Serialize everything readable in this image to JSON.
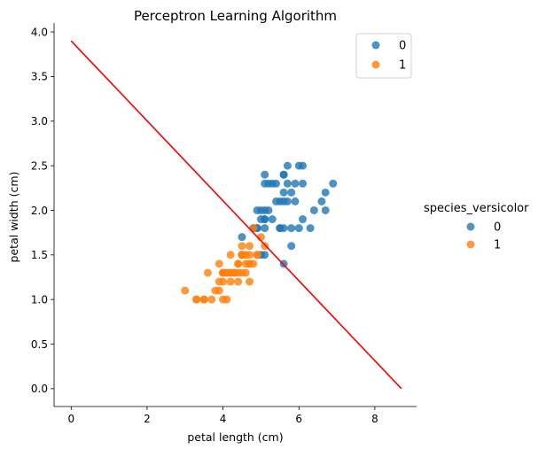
{
  "chart_data": {
    "type": "scatter",
    "title": "Perceptron Learning Algorithm",
    "xlabel": "petal length (cm)",
    "ylabel": "petal width (cm)",
    "xlim": [
      -0.45,
      9.1
    ],
    "ylim": [
      -0.2,
      4.1
    ],
    "xticks": [
      "0",
      "2",
      "4",
      "6",
      "8"
    ],
    "xtick_values": [
      0,
      2,
      4,
      6,
      8
    ],
    "yticks": [
      "0.0",
      "0.5",
      "1.0",
      "1.5",
      "2.0",
      "2.5",
      "3.0",
      "3.5",
      "4.0"
    ],
    "ytick_values": [
      0,
      0.5,
      1,
      1.5,
      2,
      2.5,
      3,
      3.5,
      4
    ],
    "grid": false,
    "series": [
      {
        "name": "0",
        "color": "#1f77b4",
        "points": [
          [
            6.0,
            2.5
          ],
          [
            5.1,
            1.9
          ],
          [
            5.9,
            2.1
          ],
          [
            5.6,
            1.8
          ],
          [
            5.8,
            2.2
          ],
          [
            6.6,
            2.1
          ],
          [
            4.5,
            1.7
          ],
          [
            6.3,
            1.8
          ],
          [
            5.8,
            1.8
          ],
          [
            6.1,
            2.5
          ],
          [
            5.1,
            2.0
          ],
          [
            5.3,
            1.9
          ],
          [
            5.5,
            2.1
          ],
          [
            5.0,
            2.0
          ],
          [
            5.1,
            2.4
          ],
          [
            5.3,
            2.3
          ],
          [
            5.5,
            1.8
          ],
          [
            6.7,
            2.2
          ],
          [
            6.9,
            2.3
          ],
          [
            5.0,
            1.5
          ],
          [
            5.7,
            2.3
          ],
          [
            4.9,
            2.0
          ],
          [
            6.7,
            2.0
          ],
          [
            4.9,
            1.8
          ],
          [
            5.7,
            2.1
          ],
          [
            6.0,
            1.8
          ],
          [
            4.8,
            1.8
          ],
          [
            4.9,
            1.8
          ],
          [
            5.6,
            2.1
          ],
          [
            5.8,
            1.6
          ],
          [
            6.1,
            1.9
          ],
          [
            6.4,
            2.0
          ],
          [
            5.6,
            2.2
          ],
          [
            5.1,
            1.5
          ],
          [
            5.6,
            1.4
          ],
          [
            6.1,
            2.3
          ],
          [
            5.6,
            2.4
          ],
          [
            5.5,
            1.8
          ],
          [
            4.8,
            1.8
          ],
          [
            5.4,
            2.1
          ],
          [
            5.6,
            2.4
          ],
          [
            5.1,
            2.3
          ],
          [
            5.1,
            1.9
          ],
          [
            5.9,
            2.3
          ],
          [
            5.7,
            2.5
          ],
          [
            5.2,
            2.3
          ],
          [
            5.0,
            1.9
          ],
          [
            5.2,
            2.0
          ],
          [
            5.4,
            2.3
          ],
          [
            5.1,
            1.8
          ]
        ]
      },
      {
        "name": "1",
        "color": "#ff7f0e",
        "points": [
          [
            4.7,
            1.4
          ],
          [
            4.5,
            1.5
          ],
          [
            4.9,
            1.5
          ],
          [
            4.0,
            1.3
          ],
          [
            4.6,
            1.5
          ],
          [
            4.5,
            1.3
          ],
          [
            4.7,
            1.6
          ],
          [
            3.3,
            1.0
          ],
          [
            4.6,
            1.3
          ],
          [
            3.9,
            1.4
          ],
          [
            3.5,
            1.0
          ],
          [
            4.2,
            1.5
          ],
          [
            4.0,
            1.0
          ],
          [
            4.7,
            1.4
          ],
          [
            3.6,
            1.3
          ],
          [
            4.4,
            1.4
          ],
          [
            4.5,
            1.5
          ],
          [
            4.1,
            1.0
          ],
          [
            4.5,
            1.5
          ],
          [
            3.9,
            1.1
          ],
          [
            4.8,
            1.8
          ],
          [
            4.0,
            1.3
          ],
          [
            4.9,
            1.5
          ],
          [
            4.7,
            1.2
          ],
          [
            4.3,
            1.3
          ],
          [
            4.4,
            1.4
          ],
          [
            4.8,
            1.4
          ],
          [
            5.0,
            1.7
          ],
          [
            4.5,
            1.5
          ],
          [
            3.5,
            1.0
          ],
          [
            3.8,
            1.1
          ],
          [
            3.7,
            1.0
          ],
          [
            3.9,
            1.2
          ],
          [
            5.1,
            1.6
          ],
          [
            4.5,
            1.5
          ],
          [
            4.5,
            1.6
          ],
          [
            4.7,
            1.5
          ],
          [
            4.4,
            1.3
          ],
          [
            4.1,
            1.3
          ],
          [
            4.0,
            1.3
          ],
          [
            4.4,
            1.2
          ],
          [
            4.6,
            1.4
          ],
          [
            4.0,
            1.2
          ],
          [
            3.3,
            1.0
          ],
          [
            4.2,
            1.3
          ],
          [
            4.2,
            1.2
          ],
          [
            4.2,
            1.3
          ],
          [
            4.3,
            1.3
          ],
          [
            3.0,
            1.1
          ],
          [
            4.1,
            1.3
          ]
        ]
      }
    ],
    "decision_line": {
      "color": "#ff0000",
      "x": [
        0,
        8.7
      ],
      "y": [
        3.9,
        0.0
      ]
    },
    "legend_inside": {
      "placement": "top-right",
      "entries": [
        "0",
        "1"
      ]
    },
    "legend_outside": {
      "placement": "right",
      "title": "species_versicolor",
      "entries": [
        "0",
        "1"
      ]
    }
  }
}
